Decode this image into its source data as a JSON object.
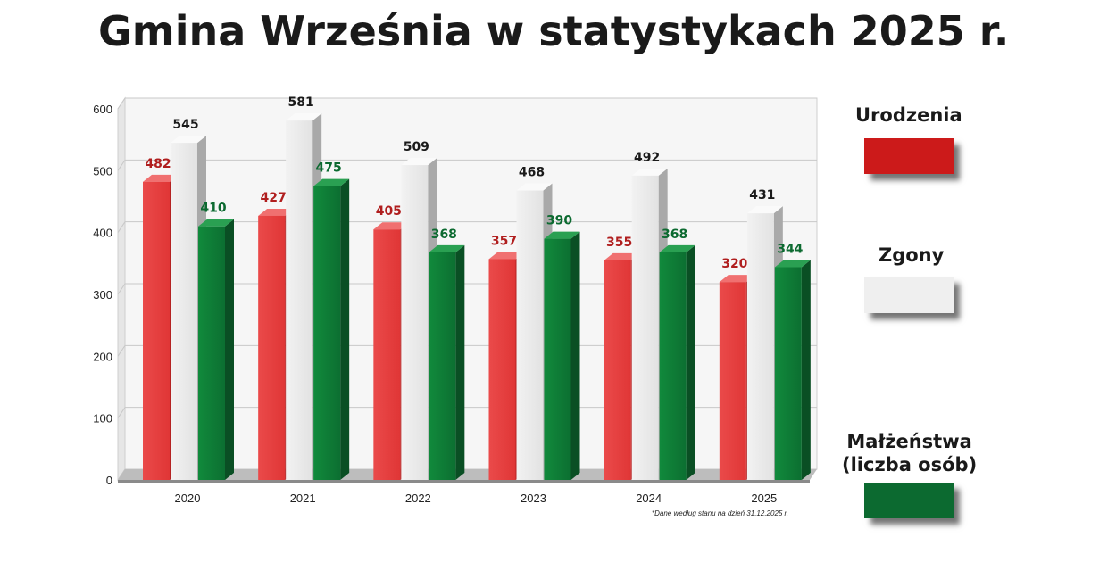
{
  "title": "Gmina Września w statystykach 2025 r.",
  "note": "*Dane według stanu na dzień 31.12.2025 r.",
  "colors": {
    "urodzenia": "#e03434",
    "zgony": "#e8e8e8",
    "malzenstwa": "#0e7a35"
  },
  "legend": [
    {
      "key": "urodzenia",
      "label": "Urodzenia",
      "icon": "red-swatch"
    },
    {
      "key": "zgony",
      "label": "Zgony",
      "icon": "white-swatch"
    },
    {
      "key": "malzenstwa",
      "label": "Małżeństwa\n(liczba osób)",
      "icon": "green-swatch"
    }
  ],
  "chart_data": {
    "type": "bar",
    "title": "Gmina Września w statystykach 2025 r.",
    "categories": [
      "2020",
      "2021",
      "2022",
      "2023",
      "2024",
      "2025"
    ],
    "series": [
      {
        "name": "Urodzenia",
        "values": [
          482,
          427,
          405,
          357,
          355,
          320
        ]
      },
      {
        "name": "Zgony",
        "values": [
          545,
          581,
          509,
          468,
          492,
          431
        ]
      },
      {
        "name": "Małżeństwa (liczba osób)",
        "values": [
          410,
          475,
          368,
          390,
          368,
          344
        ]
      }
    ],
    "ylim": [
      0,
      600
    ],
    "yticks": [
      0,
      100,
      200,
      300,
      400,
      500,
      600
    ],
    "grid": true,
    "legend_position": "right"
  }
}
